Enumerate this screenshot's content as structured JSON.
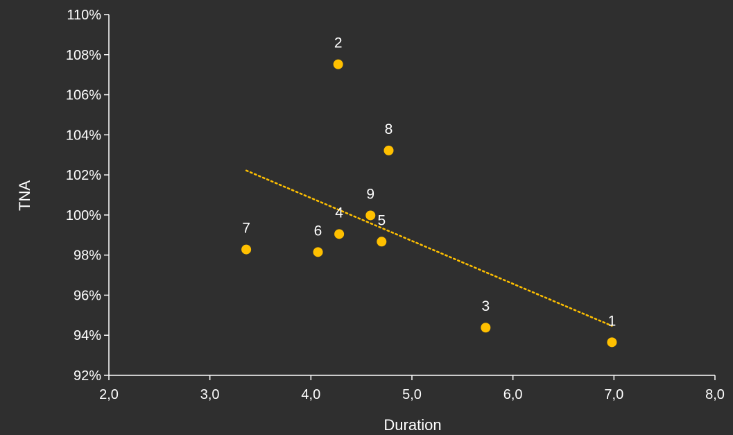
{
  "colors": {
    "background": "#2f2f2f",
    "axis": "#ffffff",
    "point": "#ffc000",
    "trendline": "#ffc000",
    "text": "#ffffff"
  },
  "chart_data": {
    "type": "scatter",
    "title": "",
    "xlabel": "Duration",
    "ylabel": "TNA",
    "xlim": [
      2.0,
      8.0
    ],
    "ylim": [
      0.92,
      1.1
    ],
    "x_ticks": [
      2.0,
      3.0,
      4.0,
      5.0,
      6.0,
      7.0,
      8.0
    ],
    "x_tick_labels": [
      "2,0",
      "3,0",
      "4,0",
      "5,0",
      "6,0",
      "7,0",
      "8,0"
    ],
    "y_ticks": [
      0.92,
      0.94,
      0.96,
      0.98,
      1.0,
      1.02,
      1.04,
      1.06,
      1.08,
      1.1
    ],
    "y_tick_labels": [
      "92%",
      "94%",
      "96%",
      "98%",
      "100%",
      "102%",
      "104%",
      "106%",
      "108%",
      "110%"
    ],
    "grid": false,
    "legend": "none",
    "points": [
      {
        "label": "1",
        "x": 6.98,
        "y": 0.9365
      },
      {
        "label": "2",
        "x": 4.27,
        "y": 1.0752
      },
      {
        "label": "3",
        "x": 5.73,
        "y": 0.9438
      },
      {
        "label": "4",
        "x": 4.28,
        "y": 0.9905
      },
      {
        "label": "5",
        "x": 4.7,
        "y": 0.9867
      },
      {
        "label": "6",
        "x": 4.07,
        "y": 0.9815
      },
      {
        "label": "7",
        "x": 3.36,
        "y": 0.9828
      },
      {
        "label": "8",
        "x": 4.77,
        "y": 1.0322
      },
      {
        "label": "9",
        "x": 4.59,
        "y": 0.9998
      }
    ],
    "trendline": {
      "type": "linear",
      "style": "dotted",
      "x_start": 3.36,
      "y_start": 1.0222,
      "x_end": 6.98,
      "y_end": 0.9447
    }
  }
}
